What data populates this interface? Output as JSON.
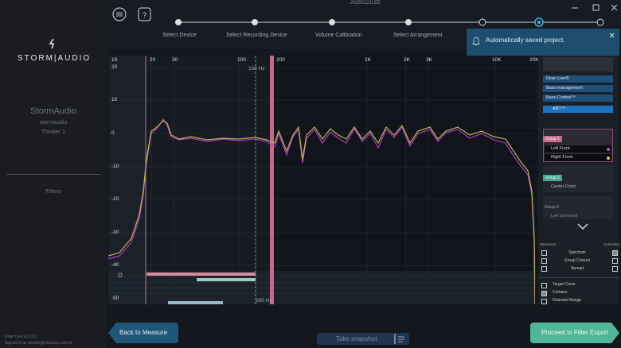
{
  "window": {
    "title": "20250122LEE"
  },
  "sidebar": {
    "brand": "STORM|AUDIO",
    "company": "StormAudio",
    "user": "stormaudio",
    "theater": "Theater 1",
    "menu": [
      "Filters"
    ],
    "version": "Dirac Live v3.13.2",
    "signed_in": "Signed in as service@harseay.com.tw"
  },
  "steps": [
    "Select Device",
    "Select Recording Device",
    "Volume Calibration",
    "Select Arrangement"
  ],
  "notification": "Automatically saved project.",
  "chart": {
    "x_labels": [
      "10",
      "20",
      "30",
      "100",
      "200",
      "1K",
      "2K",
      "3K",
      "10K",
      "20K"
    ],
    "y_labels": [
      "20",
      "10",
      "0",
      "-10",
      "-20",
      "-30",
      "-40",
      "-50"
    ],
    "markers": [
      "150 Hz",
      "200 Hz"
    ]
  },
  "panel": {
    "tabs": [
      "Dirac Live®",
      "Bass management",
      "Bass Control™",
      "ART™"
    ],
    "groups": [
      {
        "name": "Group 1",
        "channels": [
          "Left Front",
          "Right Front"
        ]
      },
      {
        "name": "Group 2",
        "channels": [
          "Center Front"
        ]
      },
      {
        "name": "Group 3",
        "channels": [
          "Left Surround"
        ]
      }
    ],
    "display_headers": [
      "Measured",
      "Corrected"
    ],
    "display_options": [
      "Spectrum",
      "Group Colours",
      "Spread"
    ],
    "overlay_options": [
      "Target Curve",
      "Curtains",
      "Detected Range"
    ]
  },
  "buttons": {
    "back": "Back to Measure",
    "snapshot": "Take snapshot",
    "proceed": "Proceed to Filter Export"
  }
}
